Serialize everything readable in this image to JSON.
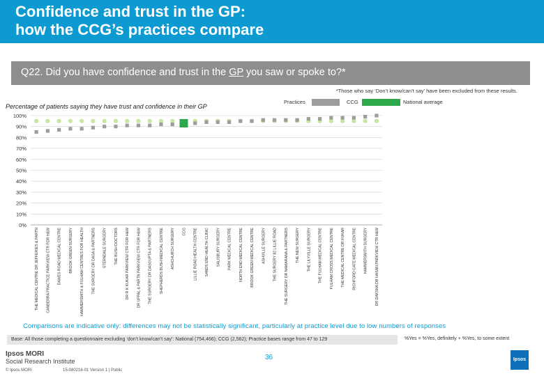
{
  "header": {
    "title_line1": "Confidence and trust in the GP:",
    "title_line2": "how the CCG’s practices compare"
  },
  "question": {
    "prefix": "Q22. Did you have confidence and trust in the ",
    "underlined": "GP",
    "suffix": " you saw or spoke to?*"
  },
  "footnote": "*Those who say ‘Don’t know/can’t say’ have been excluded from these results.",
  "legend": {
    "practices": "Practices",
    "ccg": "CCG",
    "national": "National average"
  },
  "colors": {
    "practices": "#9d9d9d",
    "ccg": "#2da84a",
    "national": "#c8e6a0",
    "brand": "#0d9ad0"
  },
  "chart_data": {
    "type": "scatter",
    "title": "Percentage of patients saying they have trust and confidence in their GP",
    "ylim": [
      0,
      100
    ],
    "y_ticks": [
      "100%",
      "90%",
      "80%",
      "70%",
      "60%",
      "50%",
      "40%",
      "30%",
      "20%",
      "10%",
      "0%"
    ],
    "grid": true,
    "legend_position": "top-right",
    "national_average": 95,
    "ccg_value": 93,
    "categories": [
      "THE MEDICAL CENTRE DR JEFFERIES & PARTN",
      "CANBERRA PRACTICE PARKVIEW CTR FOR H&W",
      "DAWES ROAD MEDICAL CENTRE",
      "BROOK GREEN SURGERY",
      "HAMMERSMITH & FULHAM CENTRES FOR HEALTH",
      "THE SURGERY DR DASA & PARTNERS",
      "STERNDALE SURGERY",
      "THE BUSH DOCTORS",
      "DR R K KUKAR PARKVIEW CTR FOR H&W",
      "DR UPPAL & PARTN PARKVIEW CTR FOR H&W",
      "THE SURGERY DR DASGUPTA & PARTNERS",
      "SHEPHERDS BUSH MEDICAL CENTRE",
      "ASHCHURCH SURGERY",
      "CCG",
      "LILLIE ROAD HEALTH CENTRE",
      "SANDS END HEALTH CLINIC",
      "SALISBURY SURGERY",
      "PARK MEDICAL CENTRE",
      "NORTH END MEDICAL CENTRE",
      "BROOK GREEN MEDICAL CENTRE",
      "ASHVILLE SURGERY",
      "THE SURGERY 82 LILLIE ROAD",
      "THE SURGERY DR NAMARANA & PARTNERS",
      "THE NEW SURGERY",
      "THE LILYVILLE SURGERY",
      "THE FULHAM MEDICAL CENTRE",
      "FULHAM CROSS MEDICAL CENTRE",
      "THE MEDICAL CENTRE DR KUKAR",
      "RICHFORD GATE MEDICAL CENTRE",
      "HAMMERSMITH SURGERY",
      "DR DAKSHA DR HASAN PARKVIEW CTR H&W"
    ],
    "values": [
      85,
      86,
      87,
      88,
      88,
      89,
      90,
      90,
      91,
      91,
      91,
      92,
      92,
      93,
      93,
      94,
      94,
      94,
      95,
      95,
      96,
      96,
      96,
      96,
      97,
      97,
      98,
      98,
      98,
      99,
      100
    ]
  },
  "disclaimer": "Comparisons are indicative only: differences may not be statistically significant, particularly at practice level due to low numbers of responses",
  "base": "Base: All those completing a questionnaire excluding ‘don’t know/can’t say’: National (754,466); CCG (2,562); Practice bases range from 47 to 129",
  "scale_note": "%Yes = %Yes, definitely + %Yes, to some extent",
  "brand": {
    "line1": "Ipsos MORI",
    "line2": "Social Research Institute"
  },
  "copyright": "© Ipsos MORI",
  "version": "15-080216-01 Version 1 | Public",
  "page_number": "36",
  "logo_text": "Ipsos"
}
